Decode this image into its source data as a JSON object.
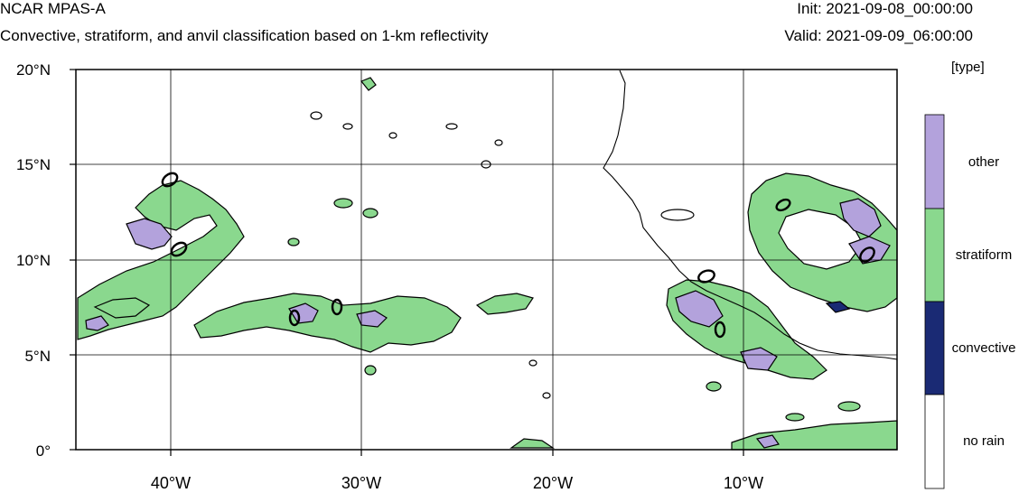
{
  "header": {
    "title": "NCAR MPAS-A",
    "subtitle": "Convective, stratiform, and anvil classification based on 1-km reflectivity",
    "init": "Init: 2021-09-08_00:00:00",
    "valid": "Valid: 2021-09-09_06:00:00"
  },
  "map": {
    "lat_labels": [
      "20°N",
      "15°N",
      "10°N",
      "5°N",
      "0°"
    ],
    "lon_labels": [
      "40°W",
      "30°W",
      "20°W",
      "10°W"
    ],
    "lat_range": [
      0,
      20
    ],
    "lon_range": [
      -45,
      -2.2
    ],
    "grid": true
  },
  "legend": {
    "units": "[type]",
    "items": [
      {
        "label": "other",
        "color": "#b3a2dc"
      },
      {
        "label": "stratiform",
        "color": "#8ad88e"
      },
      {
        "label": "convective",
        "color": "#1a2a74"
      },
      {
        "label": "no rain",
        "color": "#ffffff"
      }
    ]
  },
  "colors": {
    "other": "#b3a2dc",
    "stratiform": "#8ad88e",
    "convective": "#1a2a74",
    "no_rain": "#ffffff",
    "contour": "#000000"
  }
}
